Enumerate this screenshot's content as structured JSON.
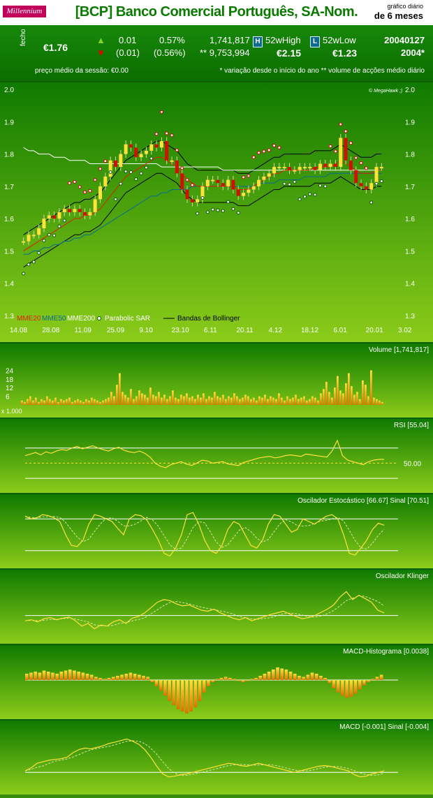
{
  "header": {
    "logo_text": "Millennium",
    "title": "[BCP] Banco Comercial Português, SA-Nom.",
    "graph_small": "gráfico diário",
    "graph_big": "de 6 meses"
  },
  "quote": {
    "fecho_label": "fecho",
    "close": "€1.76",
    "change_abs": "0.01",
    "change_abs_low": "(0.01)",
    "change_pct": "0.57%",
    "change_pct_low": "(0.56%)",
    "volume": "1,741,817",
    "avg_volume": "** 9,753,994",
    "high_badge": "H",
    "high_label": "52wHigh",
    "high_value": "€2.15",
    "low_badge": "L",
    "low_label": "52wLow",
    "low_value": "€1.23",
    "date": "20040127",
    "year_note": "2004*",
    "avg_price": "preço médio da sessão:  €0.00",
    "footnote": "* variação desde o início do ano  ** volume de acções médio diário",
    "up_color": "#7fd62a",
    "down_color": "#e00000"
  },
  "chart_data": [
    {
      "type": "candlestick",
      "title": "",
      "watermark": "© MegaHawk ;)",
      "y_ticks": [
        "2.0",
        "1.9",
        "1.8",
        "1.7",
        "1.6",
        "1.5",
        "1.4",
        "1.3"
      ],
      "ylim": [
        1.3,
        2.0
      ],
      "x_ticks": [
        "14.08",
        "28.08",
        "11.09",
        "25.09",
        "9.10",
        "23.10",
        "6.11",
        "20.11",
        "4.12",
        "18.12",
        "6.01",
        "20.01",
        "3.02"
      ],
      "legend": [
        "MME20",
        "MME50",
        "MME200",
        "Parabolic SAR",
        "Bandas de Bollinger"
      ],
      "legend_colors": [
        "#e02000",
        "#0a6a90",
        "#ffffff",
        "#ffffff",
        "#000000"
      ],
      "close": [
        1.53,
        1.55,
        1.55,
        1.57,
        1.6,
        1.61,
        1.6,
        1.62,
        1.63,
        1.62,
        1.63,
        1.62,
        1.61,
        1.62,
        1.66,
        1.7,
        1.73,
        1.78,
        1.76,
        1.8,
        1.83,
        1.82,
        1.79,
        1.8,
        1.81,
        1.83,
        1.82,
        1.84,
        1.78,
        1.78,
        1.74,
        1.69,
        1.66,
        1.65,
        1.66,
        1.7,
        1.72,
        1.72,
        1.71,
        1.7,
        1.72,
        1.69,
        1.67,
        1.68,
        1.69,
        1.7,
        1.72,
        1.73,
        1.74,
        1.76,
        1.76,
        1.76,
        1.75,
        1.75,
        1.76,
        1.76,
        1.76,
        1.75,
        1.77,
        1.76,
        1.77,
        1.76,
        1.85,
        1.78,
        1.75,
        1.71,
        1.7,
        1.69,
        1.71,
        1.76,
        1.76
      ],
      "mme20": [
        1.5,
        1.51,
        1.52,
        1.53,
        1.54,
        1.55,
        1.56,
        1.57,
        1.58,
        1.59,
        1.6,
        1.6,
        1.61,
        1.61,
        1.62,
        1.63,
        1.65,
        1.67,
        1.69,
        1.71,
        1.73,
        1.74,
        1.75,
        1.76,
        1.77,
        1.78,
        1.79,
        1.79,
        1.78,
        1.77,
        1.76,
        1.74,
        1.72,
        1.71,
        1.7,
        1.7,
        1.7,
        1.7,
        1.7,
        1.7,
        1.7,
        1.7,
        1.69,
        1.69,
        1.69,
        1.7,
        1.71,
        1.72,
        1.73,
        1.74,
        1.74,
        1.75,
        1.75,
        1.75,
        1.75,
        1.75,
        1.75,
        1.76,
        1.76,
        1.76,
        1.76,
        1.77,
        1.78,
        1.77,
        1.76,
        1.75,
        1.74,
        1.74,
        1.74,
        1.75,
        1.75
      ],
      "mme50": [
        1.49,
        1.49,
        1.5,
        1.5,
        1.51,
        1.51,
        1.52,
        1.52,
        1.53,
        1.53,
        1.54,
        1.54,
        1.55,
        1.55,
        1.56,
        1.57,
        1.58,
        1.59,
        1.6,
        1.61,
        1.62,
        1.63,
        1.64,
        1.65,
        1.66,
        1.67,
        1.67,
        1.68,
        1.68,
        1.69,
        1.69,
        1.69,
        1.69,
        1.7,
        1.7,
        1.7,
        1.7,
        1.7,
        1.7,
        1.7,
        1.7,
        1.7,
        1.7,
        1.7,
        1.7,
        1.7,
        1.71,
        1.71,
        1.71,
        1.71,
        1.72,
        1.72,
        1.72,
        1.72,
        1.72,
        1.73,
        1.73,
        1.73,
        1.73,
        1.73,
        1.74,
        1.74,
        1.74,
        1.74,
        1.74,
        1.74,
        1.74,
        1.74,
        1.74,
        1.74,
        1.74
      ],
      "mme200": [
        1.82,
        1.81,
        1.81,
        1.8,
        1.8,
        1.8,
        1.79,
        1.79,
        1.79,
        1.78,
        1.78,
        1.78,
        1.78,
        1.77,
        1.77,
        1.77,
        1.77,
        1.77,
        1.77,
        1.77,
        1.77,
        1.77,
        1.77,
        1.77,
        1.77,
        1.77,
        1.77,
        1.76,
        1.76,
        1.76,
        1.76,
        1.76,
        1.76,
        1.76,
        1.76,
        1.76,
        1.76,
        1.76,
        1.76,
        1.75,
        1.75,
        1.75,
        1.75,
        1.75,
        1.75,
        1.75,
        1.75,
        1.75,
        1.75,
        1.75,
        1.75,
        1.75,
        1.75,
        1.75,
        1.75,
        1.75,
        1.75,
        1.75,
        1.75,
        1.75,
        1.75,
        1.75,
        1.75,
        1.75,
        1.75,
        1.75,
        1.75,
        1.75,
        1.75,
        1.75,
        1.75
      ]
    },
    {
      "type": "bar",
      "title": "Volume [1,741,817]",
      "unit_note": "x 1.000",
      "y_ticks": [
        "24",
        "18",
        "12",
        "6"
      ],
      "ylim": [
        0,
        30
      ],
      "values": [
        3,
        2,
        4,
        6,
        3,
        5,
        2,
        4,
        3,
        6,
        4,
        3,
        5,
        2,
        4,
        3,
        4,
        5,
        2,
        3,
        4,
        3,
        2,
        4,
        3,
        5,
        4,
        3,
        2,
        3,
        4,
        5,
        9,
        6,
        14,
        22,
        9,
        7,
        5,
        11,
        4,
        6,
        10,
        8,
        7,
        5,
        12,
        7,
        6,
        9,
        5,
        7,
        4,
        6,
        10,
        5,
        4,
        7,
        6,
        8,
        5,
        6,
        4,
        7,
        5,
        8,
        4,
        6,
        5,
        9,
        6,
        5,
        7,
        4,
        6,
        5,
        8,
        6,
        4,
        5,
        7,
        6,
        4,
        5,
        3,
        6,
        5,
        7,
        4,
        6,
        5,
        4,
        8,
        5,
        3,
        6,
        4,
        5,
        7,
        4,
        5,
        6,
        3,
        4,
        6,
        5,
        3,
        8,
        11,
        16,
        9,
        5,
        12,
        20,
        10,
        8,
        15,
        22,
        13,
        7,
        9,
        4,
        17,
        14,
        6,
        24,
        5,
        4,
        3,
        2
      ]
    },
    {
      "type": "line",
      "title": "RSI [55.04]",
      "level_label": "50.00",
      "values": [
        60,
        62,
        64,
        61,
        65,
        63,
        66,
        68,
        67,
        70,
        72,
        69,
        71,
        73,
        70,
        68,
        66,
        69,
        71,
        67,
        65,
        64,
        66,
        63,
        58,
        50,
        46,
        44,
        48,
        50,
        52,
        49,
        47,
        50,
        54,
        53,
        50,
        51,
        52,
        49,
        48,
        47,
        51,
        53,
        55,
        57,
        58,
        59,
        57,
        58,
        60,
        61,
        60,
        59,
        62,
        61,
        60,
        59,
        58,
        66,
        80,
        60,
        54,
        52,
        50,
        48,
        52,
        54,
        55,
        55
      ]
    },
    {
      "type": "line",
      "title": "Oscilador Estocástico [66.67]   Sinal [70.51]",
      "values": [
        85,
        80,
        82,
        88,
        86,
        82,
        75,
        50,
        30,
        28,
        40,
        70,
        88,
        85,
        80,
        75,
        62,
        50,
        80,
        88,
        86,
        78,
        60,
        40,
        15,
        10,
        25,
        50,
        88,
        92,
        70,
        40,
        20,
        15,
        30,
        60,
        75,
        70,
        50,
        30,
        25,
        40,
        70,
        88,
        85,
        70,
        55,
        60,
        80,
        75,
        70,
        78,
        85,
        88,
        80,
        50,
        15,
        12,
        25,
        40,
        60,
        72,
        68
      ]
    },
    {
      "type": "line",
      "title": "Oscilador Klinger",
      "values": [
        -10,
        -8,
        -12,
        -6,
        -4,
        -8,
        -5,
        -3,
        -10,
        -20,
        -15,
        -25,
        -18,
        -20,
        -12,
        -8,
        -15,
        -5,
        -2,
        5,
        15,
        25,
        30,
        28,
        22,
        18,
        20,
        15,
        10,
        8,
        12,
        5,
        0,
        -5,
        -8,
        -4,
        -10,
        -6,
        -2,
        2,
        5,
        8,
        3,
        -2,
        -6,
        -4,
        0,
        6,
        12,
        20,
        35,
        45,
        30,
        38,
        32,
        25,
        10,
        5
      ]
    },
    {
      "type": "bar",
      "title": "MACD-Histograma [0.0038]",
      "values": [
        6,
        7,
        8,
        7,
        9,
        8,
        7,
        6,
        8,
        9,
        10,
        9,
        8,
        7,
        6,
        5,
        3,
        2,
        1,
        2,
        3,
        4,
        5,
        6,
        7,
        6,
        5,
        4,
        3,
        -2,
        -6,
        -10,
        -15,
        -20,
        -24,
        -28,
        -30,
        -32,
        -30,
        -26,
        -20,
        -12,
        -6,
        -2,
        1,
        2,
        3,
        2,
        1,
        -1,
        -2,
        -1,
        1,
        2,
        4,
        6,
        8,
        10,
        12,
        11,
        10,
        8,
        6,
        4,
        3,
        5,
        7,
        6,
        4,
        2,
        -3,
        -8,
        -12,
        -15,
        -17,
        -16,
        -13,
        -9,
        -5,
        -2,
        1,
        3,
        5
      ]
    },
    {
      "type": "line",
      "title": "MACD [-0.001]  Sinal [-0.004]",
      "values": [
        2,
        6,
        12,
        14,
        16,
        17,
        18,
        20,
        26,
        30,
        32,
        31,
        33,
        35,
        38,
        40,
        42,
        44,
        41,
        37,
        30,
        20,
        8,
        -2,
        -6,
        -5,
        -3,
        -2,
        0,
        2,
        4,
        6,
        8,
        10,
        12,
        11,
        9,
        8,
        10,
        12,
        10,
        8,
        6,
        4,
        2,
        0,
        2,
        4,
        6,
        8,
        9,
        8,
        6,
        4,
        2,
        -3,
        -6,
        -5,
        -2,
        0,
        2
      ]
    }
  ]
}
